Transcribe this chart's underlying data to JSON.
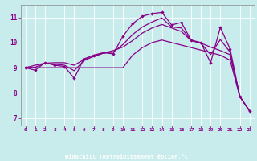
{
  "bg_color": "#c8ecec",
  "bar_color": "#330055",
  "label_color": "#880088",
  "line_color": "#880088",
  "xlabel": "Windchill (Refroidissement éolien,°C)",
  "ylim": [
    6.7,
    11.5
  ],
  "xlim": [
    -0.5,
    23.5
  ],
  "yticks": [
    7,
    8,
    9,
    10,
    11
  ],
  "xticks": [
    0,
    1,
    2,
    3,
    4,
    5,
    6,
    7,
    8,
    9,
    10,
    11,
    12,
    13,
    14,
    15,
    16,
    17,
    18,
    19,
    20,
    21,
    22,
    23
  ],
  "curve_main": [
    9.0,
    8.9,
    9.2,
    9.1,
    9.05,
    8.58,
    9.35,
    9.5,
    9.6,
    9.55,
    10.25,
    10.75,
    11.05,
    11.15,
    11.2,
    10.7,
    10.8,
    10.1,
    10.0,
    9.2,
    10.6,
    9.75,
    7.85,
    7.28
  ],
  "curve_b": [
    9.0,
    9.1,
    9.18,
    9.2,
    9.2,
    9.1,
    9.32,
    9.44,
    9.58,
    9.68,
    9.82,
    10.08,
    10.38,
    10.58,
    10.72,
    10.58,
    10.44,
    10.08,
    9.98,
    9.82,
    9.68,
    9.52,
    7.85,
    7.28
  ],
  "curve_c": [
    9.0,
    9.02,
    9.18,
    9.14,
    9.1,
    8.88,
    9.28,
    9.46,
    9.58,
    9.62,
    9.92,
    10.32,
    10.62,
    10.82,
    10.98,
    10.62,
    10.58,
    10.08,
    9.98,
    9.52,
    10.12,
    9.62,
    7.85,
    7.28
  ],
  "curve_linear": [
    9.0,
    9.0,
    9.0,
    9.0,
    9.0,
    9.0,
    9.0,
    9.0,
    9.0,
    9.0,
    9.0,
    9.5,
    9.8,
    10.0,
    10.1,
    10.0,
    9.9,
    9.8,
    9.7,
    9.6,
    9.5,
    9.3,
    7.85,
    7.28
  ]
}
